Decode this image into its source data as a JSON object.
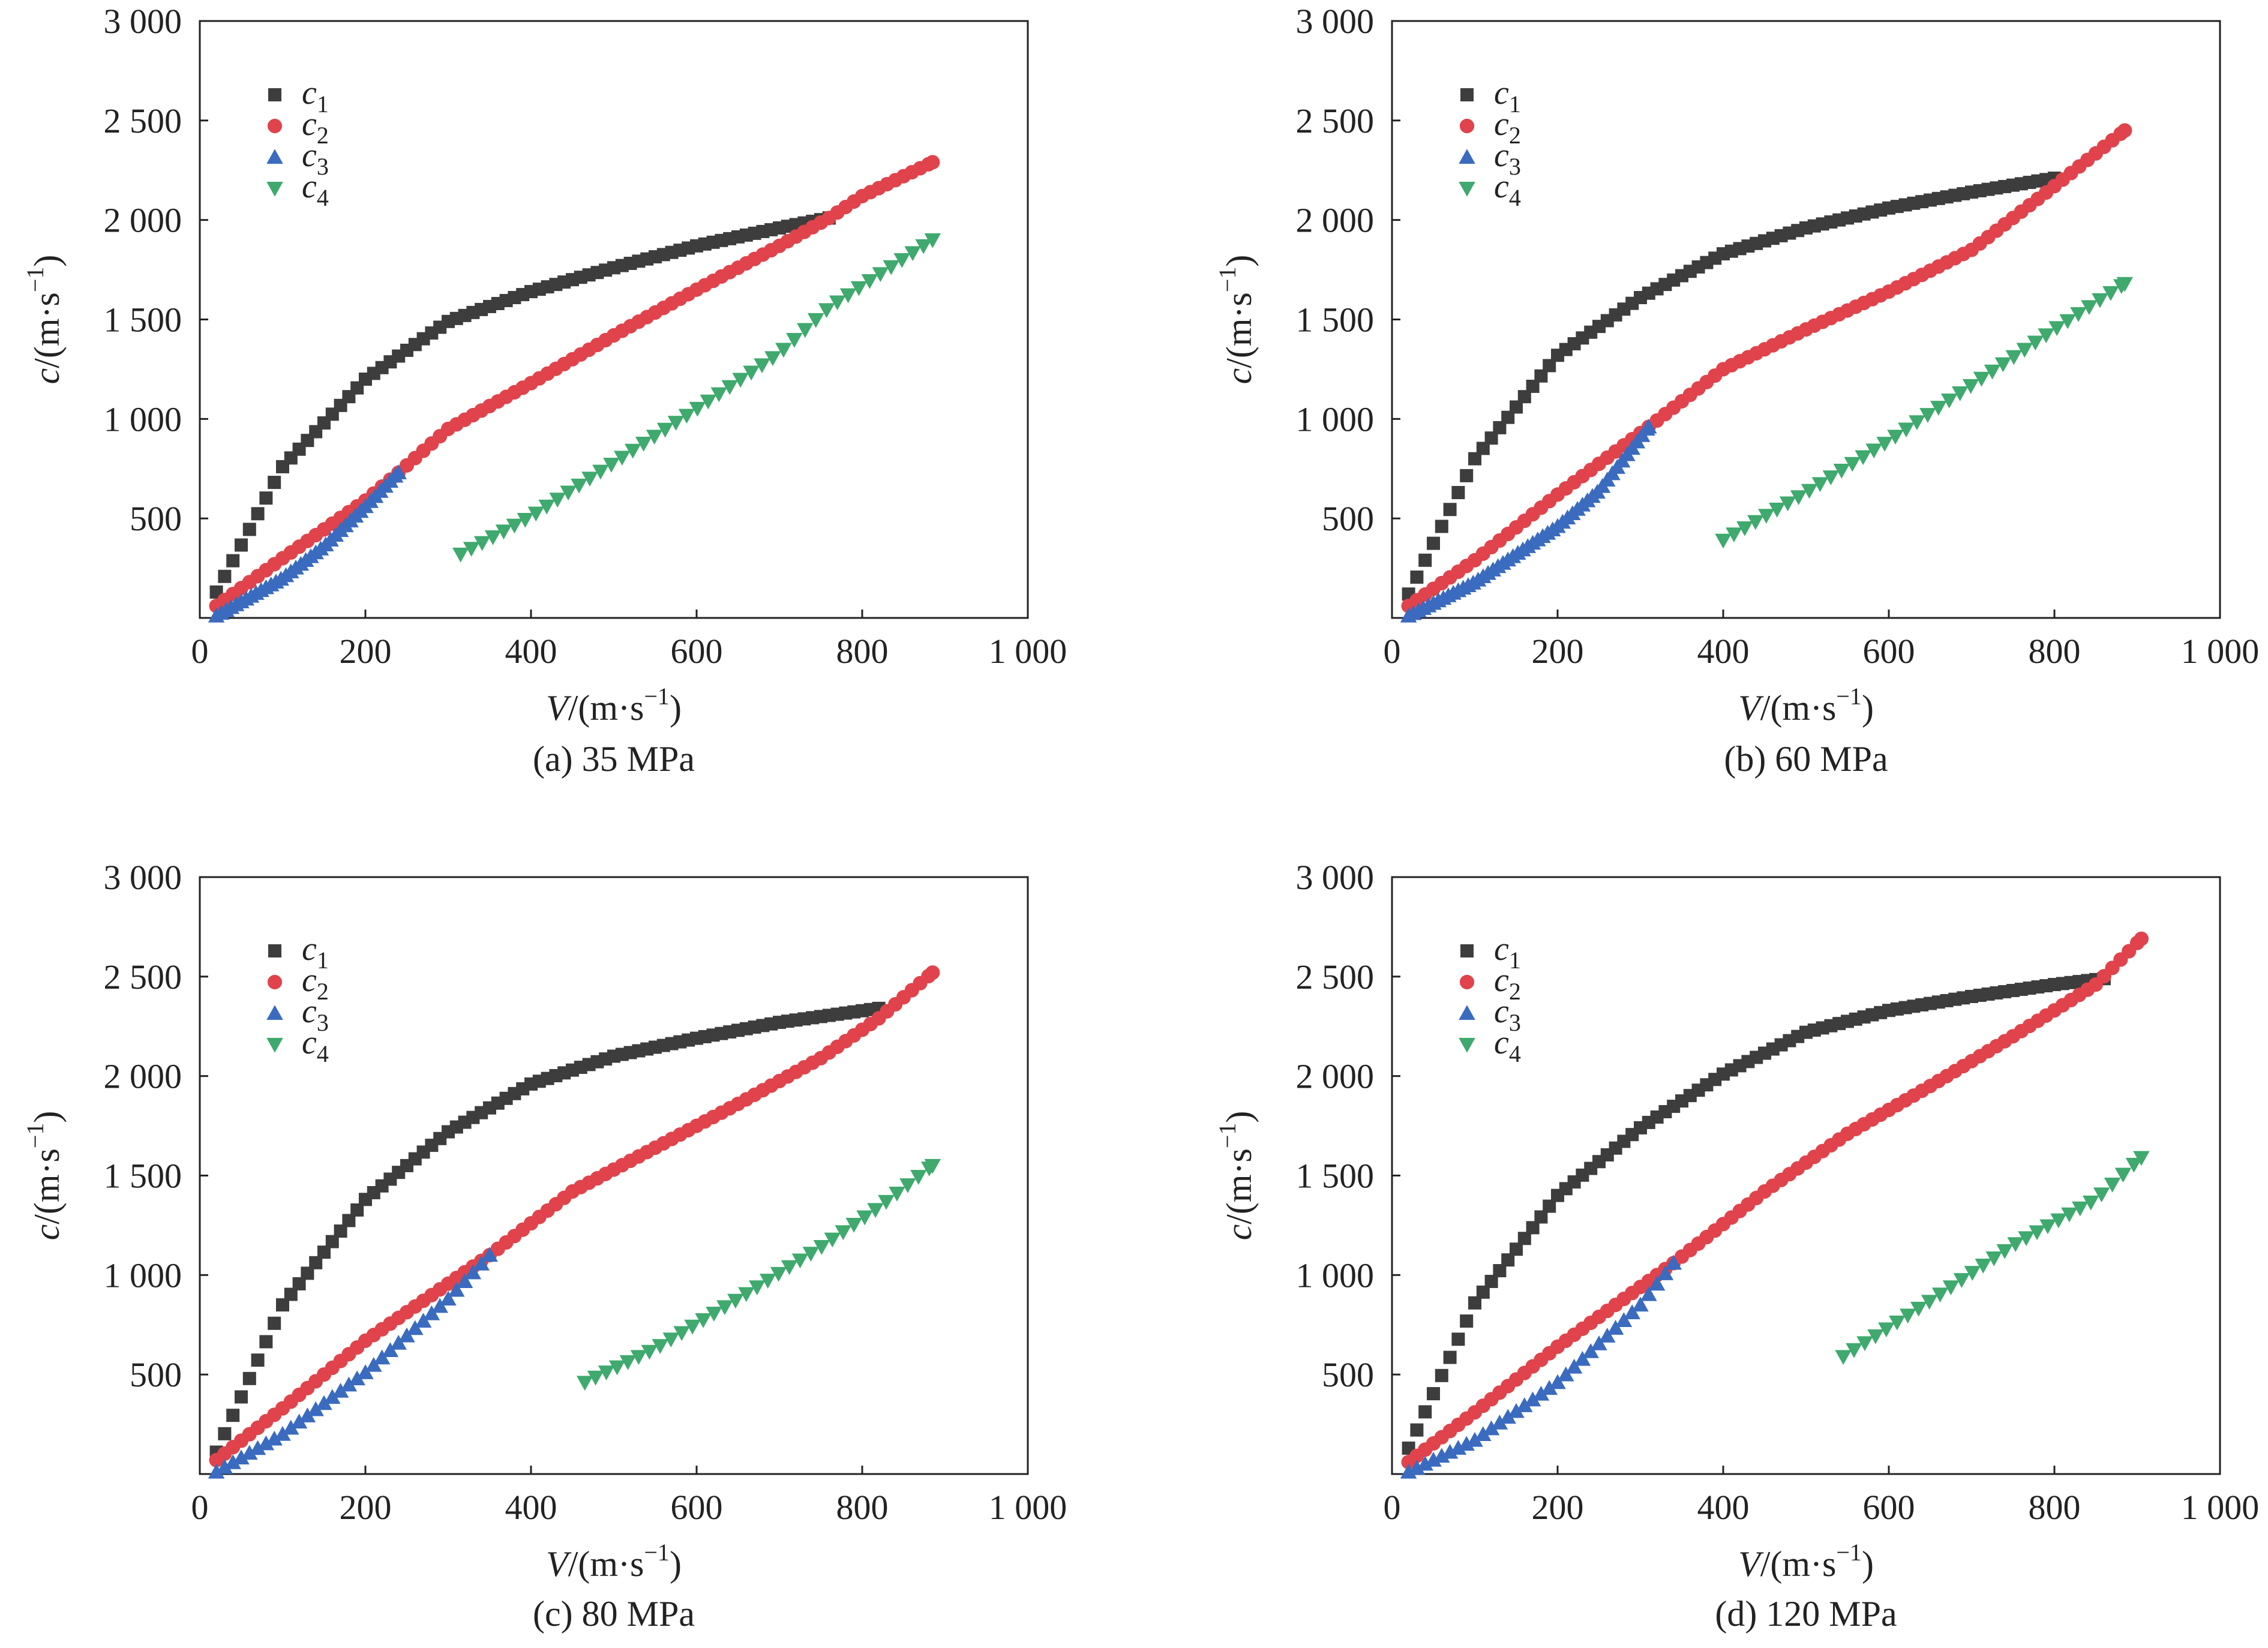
{
  "colors": {
    "c1": "#3d3d3d",
    "c2": "#e0434b",
    "c3": "#3a6bbf",
    "c4": "#3fa96e"
  },
  "legend": [
    {
      "key": "c1",
      "base": "c",
      "sub": "1",
      "marker": "square"
    },
    {
      "key": "c2",
      "base": "c",
      "sub": "2",
      "marker": "circle"
    },
    {
      "key": "c3",
      "base": "c",
      "sub": "3",
      "marker": "triangle-up"
    },
    {
      "key": "c4",
      "base": "c",
      "sub": "4",
      "marker": "triangle-down"
    }
  ],
  "axes": {
    "xlabel_var": "V",
    "xlabel_unit": "/(m·s",
    "ylabel_var": "c",
    "ylabel_unit": "/(m·s",
    "unit_exp": "−1",
    "unit_close": ")",
    "xticks": [
      "0",
      "200",
      "400",
      "600",
      "800",
      "1 000"
    ],
    "yticks": [
      "500",
      "1 000",
      "1 500",
      "2 000",
      "2 500",
      "3 000"
    ]
  },
  "chart_data": [
    {
      "type": "scatter",
      "caption": "(a) 35 MPa",
      "xlim": [
        0,
        1000
      ],
      "ylim": [
        0,
        3000
      ],
      "legend_position": "top-left",
      "series": [
        {
          "name": "c1",
          "x_range": [
            20,
            760
          ],
          "points": [
            [
              20,
              130
            ],
            [
              100,
              760
            ],
            [
              200,
              1200
            ],
            [
              300,
              1490
            ],
            [
              400,
              1640
            ],
            [
              500,
              1760
            ],
            [
              600,
              1870
            ],
            [
              700,
              1960
            ],
            [
              760,
              2010
            ]
          ]
        },
        {
          "name": "c2",
          "x_range": [
            20,
            885
          ],
          "points": [
            [
              20,
              60
            ],
            [
              100,
              300
            ],
            [
              200,
              590
            ],
            [
              240,
              730
            ],
            [
              300,
              950
            ],
            [
              400,
              1180
            ],
            [
              500,
              1420
            ],
            [
              600,
              1650
            ],
            [
              700,
              1870
            ],
            [
              760,
              2010
            ],
            [
              800,
              2120
            ],
            [
              885,
              2290
            ]
          ]
        },
        {
          "name": "c3",
          "x_range": [
            20,
            240
          ],
          "points": [
            [
              20,
              10
            ],
            [
              100,
              200
            ],
            [
              150,
              360
            ],
            [
              200,
              560
            ],
            [
              240,
              730
            ]
          ]
        },
        {
          "name": "c4",
          "x_range": [
            315,
            885
          ],
          "points": [
            [
              315,
              320
            ],
            [
              400,
              510
            ],
            [
              500,
              780
            ],
            [
              600,
              1050
            ],
            [
              700,
              1330
            ],
            [
              760,
              1560
            ],
            [
              800,
              1670
            ],
            [
              885,
              1900
            ]
          ]
        }
      ]
    },
    {
      "type": "scatter",
      "caption": "(b) 60 MPa",
      "xlim": [
        0,
        1000
      ],
      "ylim": [
        0,
        3000
      ],
      "legend_position": "top-left",
      "series": [
        {
          "name": "c1",
          "x_range": [
            20,
            800
          ],
          "points": [
            [
              20,
              120
            ],
            [
              100,
              800
            ],
            [
              200,
              1320
            ],
            [
              300,
              1610
            ],
            [
              400,
              1830
            ],
            [
              500,
              1960
            ],
            [
              600,
              2060
            ],
            [
              700,
              2140
            ],
            [
              800,
              2210
            ]
          ]
        },
        {
          "name": "c2",
          "x_range": [
            20,
            885
          ],
          "points": [
            [
              20,
              60
            ],
            [
              100,
              290
            ],
            [
              200,
              620
            ],
            [
              310,
              960
            ],
            [
              400,
              1250
            ],
            [
              500,
              1450
            ],
            [
              600,
              1640
            ],
            [
              700,
              1850
            ],
            [
              800,
              2170
            ],
            [
              885,
              2450
            ]
          ]
        },
        {
          "name": "c3",
          "x_range": [
            20,
            310
          ],
          "points": [
            [
              20,
              10
            ],
            [
              100,
              180
            ],
            [
              200,
              460
            ],
            [
              250,
              640
            ],
            [
              310,
              960
            ]
          ]
        },
        {
          "name": "c4",
          "x_range": [
            400,
            885
          ],
          "points": [
            [
              400,
              390
            ],
            [
              500,
              630
            ],
            [
              600,
              890
            ],
            [
              700,
              1170
            ],
            [
              800,
              1450
            ],
            [
              885,
              1680
            ]
          ]
        }
      ]
    },
    {
      "type": "scatter",
      "caption": "(c) 80 MPa",
      "xlim": [
        0,
        1000
      ],
      "ylim": [
        0,
        3000
      ],
      "legend_position": "top-left",
      "series": [
        {
          "name": "c1",
          "x_range": [
            20,
            820
          ],
          "points": [
            [
              20,
              110
            ],
            [
              100,
              850
            ],
            [
              200,
              1380
            ],
            [
              300,
              1720
            ],
            [
              400,
              1960
            ],
            [
              500,
              2100
            ],
            [
              600,
              2190
            ],
            [
              700,
              2270
            ],
            [
              820,
              2340
            ]
          ]
        },
        {
          "name": "c2",
          "x_range": [
            20,
            885
          ],
          "points": [
            [
              20,
              70
            ],
            [
              100,
              330
            ],
            [
              200,
              670
            ],
            [
              350,
              1100
            ],
            [
              450,
              1420
            ],
            [
              550,
              1640
            ],
            [
              650,
              1860
            ],
            [
              750,
              2090
            ],
            [
              820,
              2290
            ],
            [
              885,
              2520
            ]
          ]
        },
        {
          "name": "c3",
          "x_range": [
            20,
            350
          ],
          "points": [
            [
              20,
              10
            ],
            [
              100,
              200
            ],
            [
              200,
              510
            ],
            [
              300,
              880
            ],
            [
              350,
              1100
            ]
          ]
        },
        {
          "name": "c4",
          "x_range": [
            465,
            885
          ],
          "points": [
            [
              465,
              460
            ],
            [
              550,
              630
            ],
            [
              650,
              880
            ],
            [
              750,
              1140
            ],
            [
              820,
              1340
            ],
            [
              885,
              1550
            ]
          ]
        }
      ]
    },
    {
      "type": "scatter",
      "caption": "(d) 120 MPa",
      "xlim": [
        0,
        1000
      ],
      "ylim": [
        0,
        3000
      ],
      "legend_position": "top-left",
      "series": [
        {
          "name": "c1",
          "x_range": [
            20,
            860
          ],
          "points": [
            [
              20,
              130
            ],
            [
              100,
              860
            ],
            [
              200,
              1400
            ],
            [
              300,
              1740
            ],
            [
              400,
              2010
            ],
            [
              500,
              2220
            ],
            [
              600,
              2330
            ],
            [
              700,
              2400
            ],
            [
              800,
              2460
            ],
            [
              860,
              2490
            ]
          ]
        },
        {
          "name": "c2",
          "x_range": [
            20,
            905
          ],
          "points": [
            [
              20,
              60
            ],
            [
              100,
              310
            ],
            [
              200,
              640
            ],
            [
              340,
              1060
            ],
            [
              450,
              1420
            ],
            [
              550,
              1710
            ],
            [
              650,
              1950
            ],
            [
              750,
              2200
            ],
            [
              850,
              2460
            ],
            [
              905,
              2690
            ]
          ]
        },
        {
          "name": "c3",
          "x_range": [
            20,
            340
          ],
          "points": [
            [
              20,
              10
            ],
            [
              100,
              170
            ],
            [
              200,
              460
            ],
            [
              300,
              850
            ],
            [
              340,
              1060
            ]
          ]
        },
        {
          "name": "c4",
          "x_range": [
            545,
            905
          ],
          "points": [
            [
              545,
              590
            ],
            [
              650,
              870
            ],
            [
              750,
              1150
            ],
            [
              850,
              1380
            ],
            [
              905,
              1590
            ]
          ]
        }
      ]
    }
  ]
}
